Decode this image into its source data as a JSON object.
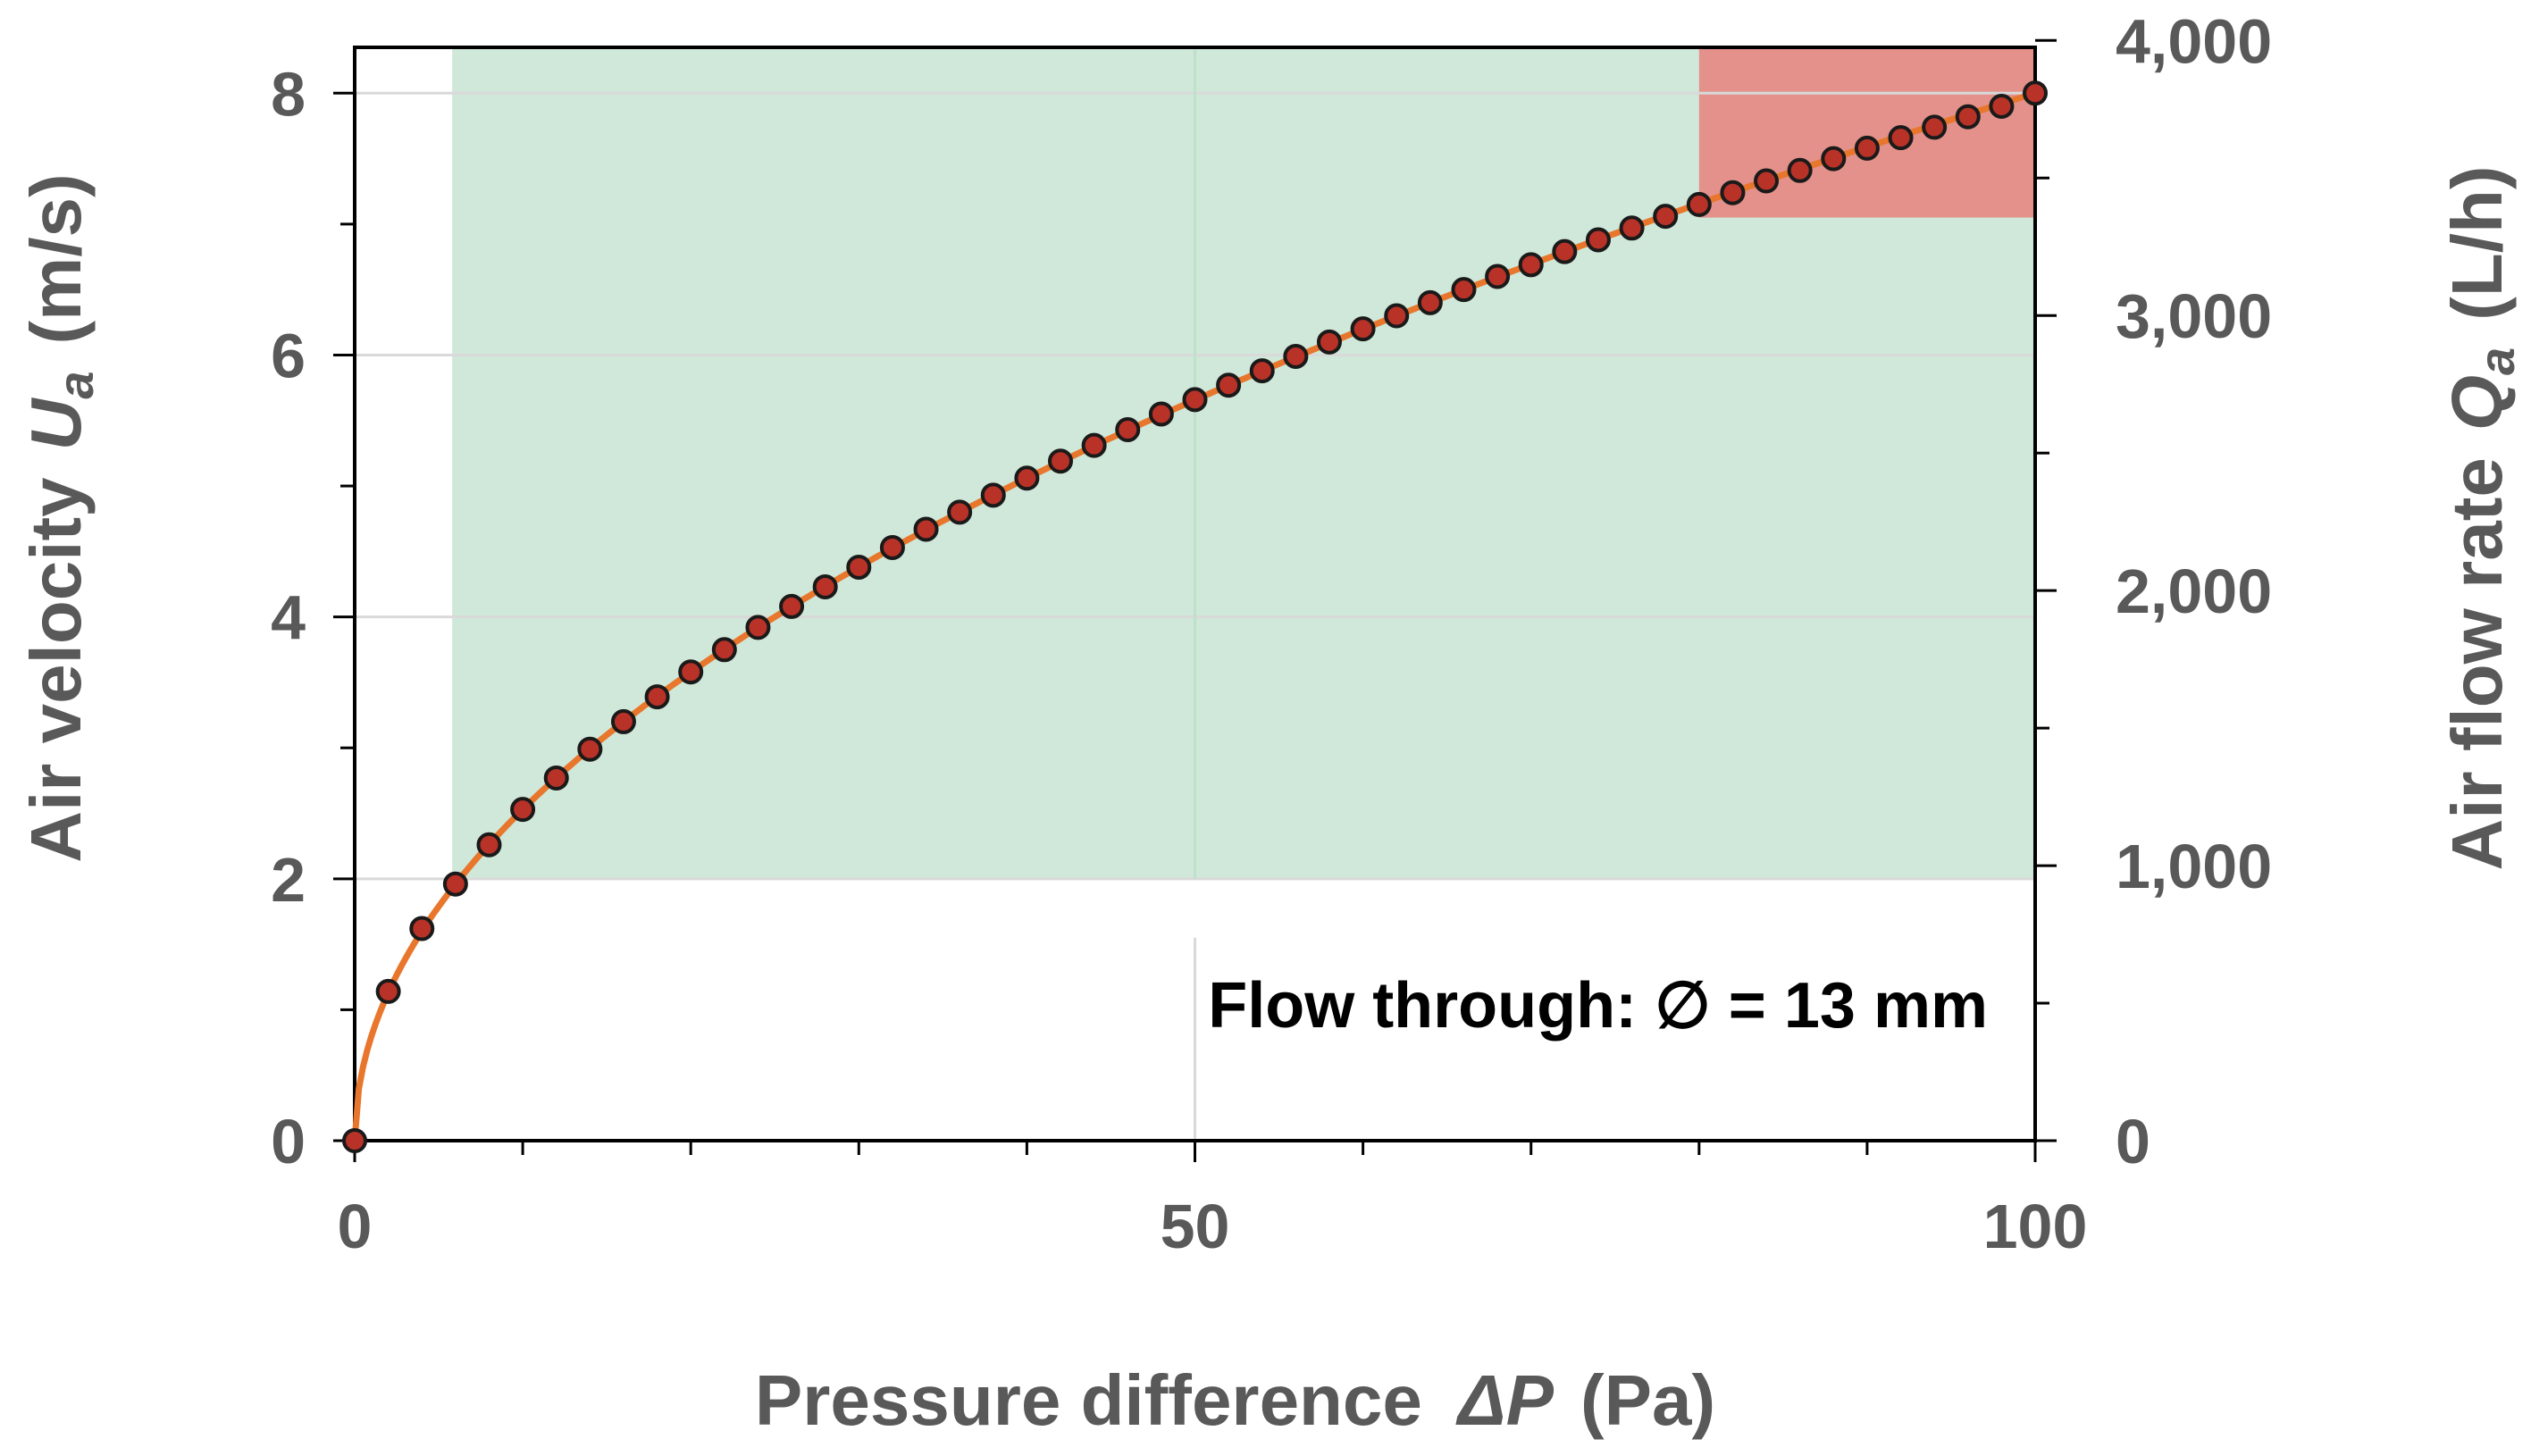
{
  "chart_data": {
    "type": "scatter",
    "title": "",
    "xlabel": {
      "main": "Pressure difference",
      "symbol": "ΔP",
      "unit": "(Pa)"
    },
    "ylabel_left": {
      "main": "Air velocity",
      "symbol": "U",
      "subscript": "a",
      "unit": "(m/s)"
    },
    "ylabel_right": {
      "main": "Air flow rate",
      "symbol": "Q",
      "subscript": "a",
      "unit": "(L/h)"
    },
    "xlim": [
      0,
      100
    ],
    "ylim_left": [
      0,
      8.35
    ],
    "ylim_right": [
      0,
      3975
    ],
    "x_ticks": [
      0,
      50,
      100
    ],
    "x_tick_labels": [
      "0",
      "50",
      "100"
    ],
    "y_left_ticks": [
      0,
      2,
      4,
      6,
      8
    ],
    "y_left_tick_labels": [
      "0",
      "2",
      "4",
      "6",
      "8"
    ],
    "y_right_ticks": [
      0,
      1000,
      2000,
      3000,
      4000
    ],
    "y_right_tick_labels": [
      "0",
      "1,000",
      "2,000",
      "3,000",
      "4,000"
    ],
    "annotation": "Flow through: ∅ = 13 mm",
    "regions": [
      {
        "name": "green-zone",
        "x": [
          5.8,
          100
        ],
        "y": [
          2.0,
          8.35
        ],
        "color": "#cfe8d9"
      },
      {
        "name": "red-zone",
        "x": [
          80,
          100
        ],
        "y": [
          7.05,
          8.35
        ],
        "color": "#e3918a"
      }
    ],
    "series": [
      {
        "name": "measured",
        "marker_fill": "#b83227",
        "marker_edge": "#1a1a1a",
        "x": [
          0,
          2,
          4,
          6,
          8,
          10,
          12,
          14,
          16,
          18,
          20,
          22,
          24,
          26,
          28,
          30,
          32,
          34,
          36,
          38,
          40,
          42,
          44,
          46,
          48,
          50,
          52,
          54,
          56,
          58,
          60,
          62,
          64,
          66,
          68,
          70,
          72,
          74,
          76,
          78,
          80,
          82,
          84,
          86,
          88,
          90,
          92,
          94,
          96,
          98,
          100
        ],
        "y": [
          0,
          1.14,
          1.62,
          1.96,
          2.26,
          2.53,
          2.77,
          2.99,
          3.2,
          3.39,
          3.58,
          3.75,
          3.92,
          4.08,
          4.23,
          4.38,
          4.53,
          4.67,
          4.8,
          4.93,
          5.06,
          5.19,
          5.31,
          5.43,
          5.55,
          5.66,
          5.77,
          5.88,
          5.99,
          6.1,
          6.2,
          6.3,
          6.4,
          6.5,
          6.6,
          6.69,
          6.79,
          6.88,
          6.97,
          7.06,
          7.15,
          7.24,
          7.33,
          7.41,
          7.5,
          7.58,
          7.66,
          7.74,
          7.82,
          7.9,
          8.0
        ]
      },
      {
        "name": "fit",
        "line_color": "#e8762c",
        "form": "sqrt",
        "coefficient": 0.8
      }
    ]
  },
  "colors": {
    "axis": "#000000",
    "text": "#595959",
    "gridline": "#bfe0cb",
    "gridline_outside": "#d9d9d9"
  }
}
